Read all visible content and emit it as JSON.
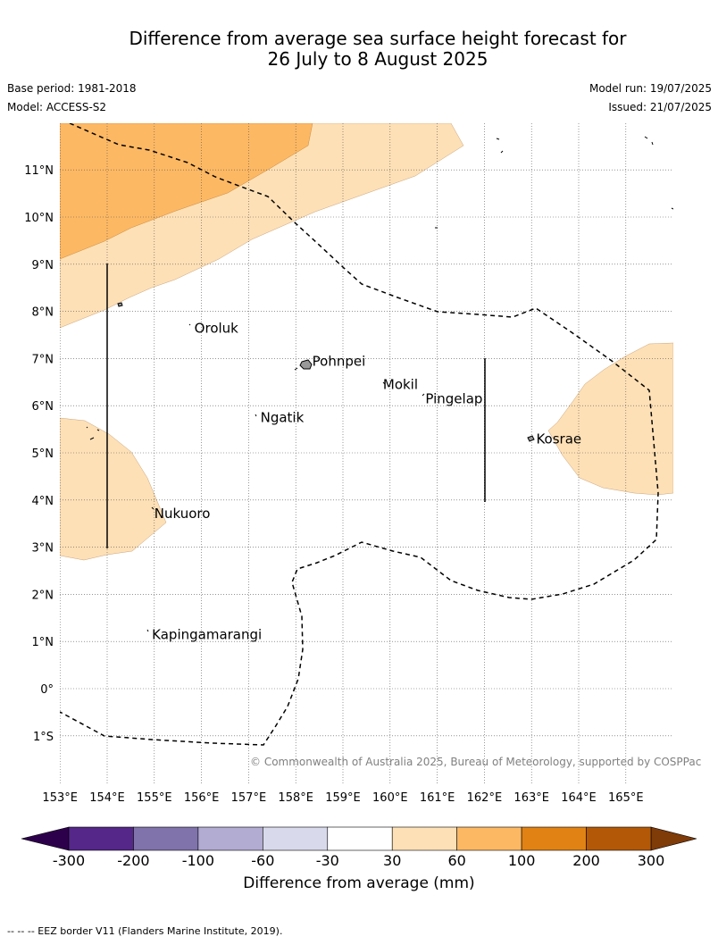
{
  "title_line1": "Difference from average sea surface height forecast for",
  "title_line2": "26 July to 8 August 2025",
  "base_period": "Base period: 1981-2018",
  "model": "Model: ACCESS-S2",
  "model_run": "Model run: 19/07/2025",
  "issued": "Issued: 21/07/2025",
  "copyright": "© Commonwealth of Australia 2025, Bureau of Meteorology, supported by COSPPac",
  "eez_note": "--  --  -- EEZ border V11 (Flanders Marine Institute, 2019).",
  "map": {
    "lon_range": [
      153,
      166
    ],
    "lat_range": [
      -2,
      12
    ],
    "lat_ticks": [
      {
        "value": 11,
        "label": "11°N"
      },
      {
        "value": 10,
        "label": "10°N"
      },
      {
        "value": 9,
        "label": "9°N"
      },
      {
        "value": 8,
        "label": "8°N"
      },
      {
        "value": 7,
        "label": "7°N"
      },
      {
        "value": 6,
        "label": "6°N"
      },
      {
        "value": 5,
        "label": "5°N"
      },
      {
        "value": 4,
        "label": "4°N"
      },
      {
        "value": 3,
        "label": "3°N"
      },
      {
        "value": 2,
        "label": "2°N"
      },
      {
        "value": 1,
        "label": "1°N"
      },
      {
        "value": 0,
        "label": "0°"
      },
      {
        "value": -1,
        "label": "1°S"
      }
    ],
    "lon_ticks": [
      {
        "value": 153,
        "label": "153°E"
      },
      {
        "value": 154,
        "label": "154°E"
      },
      {
        "value": 155,
        "label": "155°E"
      },
      {
        "value": 156,
        "label": "156°E"
      },
      {
        "value": 157,
        "label": "157°E"
      },
      {
        "value": 158,
        "label": "158°E"
      },
      {
        "value": 159,
        "label": "159°E"
      },
      {
        "value": 160,
        "label": "160°E"
      },
      {
        "value": 161,
        "label": "161°E"
      },
      {
        "value": 162,
        "label": "162°E"
      },
      {
        "value": 163,
        "label": "163°E"
      },
      {
        "value": 164,
        "label": "164°E"
      },
      {
        "value": 165,
        "label": "165°E"
      }
    ],
    "places": [
      {
        "name": "Oroluk",
        "lon": 155.85,
        "lat": 7.55
      },
      {
        "name": "Pohnpei",
        "lon": 158.35,
        "lat": 6.85
      },
      {
        "name": "Mokil",
        "lon": 159.85,
        "lat": 6.35
      },
      {
        "name": "Pingelap",
        "lon": 160.75,
        "lat": 6.05
      },
      {
        "name": "Ngatik",
        "lon": 157.25,
        "lat": 5.65
      },
      {
        "name": "Kosrae",
        "lon": 163.1,
        "lat": 5.2
      },
      {
        "name": "Nukuoro",
        "lon": 155.0,
        "lat": 3.62
      },
      {
        "name": "Kapingamarangi",
        "lon": 154.95,
        "lat": 1.05
      }
    ],
    "colors": {
      "band_30_60": "#fee0b6",
      "band_60_100": "#fdb863",
      "band_100_200": "#e08214",
      "eez": "#000000",
      "grid": "#555555"
    }
  },
  "colorbar": {
    "title": "Difference from average (mm)",
    "labels": [
      "-300",
      "-200",
      "-100",
      "-60",
      "-30",
      "30",
      "60",
      "100",
      "200",
      "300"
    ],
    "colors": [
      "#542788",
      "#8073ac",
      "#b2abd2",
      "#d8daeb",
      "#ffffff",
      "#fee0b6",
      "#fdb863",
      "#e08214",
      "#b35806"
    ],
    "under_color": "#2d004b",
    "over_color": "#7f3b08"
  }
}
